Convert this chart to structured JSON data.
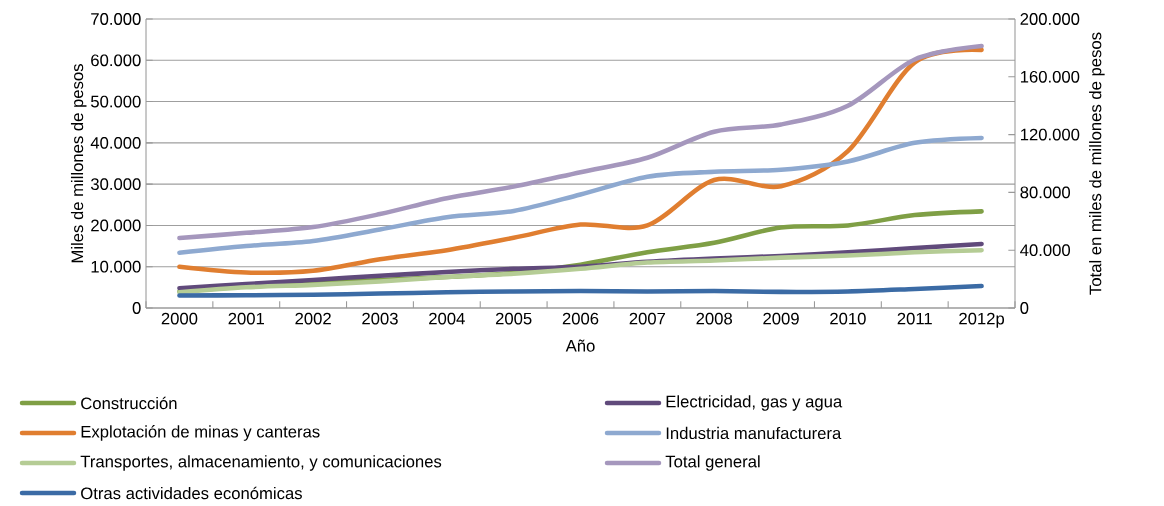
{
  "chart_data": {
    "type": "line",
    "xlabel": "Año",
    "ylabel": "Miles de millones de pesos",
    "y2label": "Total en miles de millones de pesos",
    "categories": [
      "2000",
      "2001",
      "2002",
      "2003",
      "2004",
      "2005",
      "2006",
      "2007",
      "2008",
      "2009",
      "2010",
      "2011",
      "2012p"
    ],
    "ylim": [
      0,
      70000
    ],
    "yticks": [
      {
        "value": 0,
        "label": "0"
      },
      {
        "value": 10000,
        "label": "10.000"
      },
      {
        "value": 20000,
        "label": "20.000"
      },
      {
        "value": 30000,
        "label": "30.000"
      },
      {
        "value": 40000,
        "label": "40.000"
      },
      {
        "value": 50000,
        "label": "50.000"
      },
      {
        "value": 60000,
        "label": "60.000"
      },
      {
        "value": 70000,
        "label": "70.000"
      }
    ],
    "y2lim": [
      0,
      200000
    ],
    "y2ticks": [
      {
        "value": 0,
        "label": "0"
      },
      {
        "value": 40000,
        "label": "40.000"
      },
      {
        "value": 80000,
        "label": "80.000"
      },
      {
        "value": 120000,
        "label": "120.000"
      },
      {
        "value": 160000,
        "label": "160.000"
      },
      {
        "value": 200000,
        "label": "200.000"
      }
    ],
    "grid": "y",
    "legend": "bottom",
    "line_style": "solid",
    "marker": "none",
    "series": [
      {
        "name": "Construcción",
        "color": "#7f9f45",
        "values": [
          4000,
          5200,
          6000,
          6800,
          7500,
          8500,
          10500,
          13500,
          15800,
          19500,
          20000,
          22500,
          23400
        ]
      },
      {
        "name": "Electricidad, gas y agua",
        "color": "#604a7b",
        "values": [
          4800,
          5800,
          6800,
          7800,
          8700,
          9500,
          10000,
          11200,
          12000,
          12600,
          13500,
          14500,
          15500
        ]
      },
      {
        "name": "Explotación de minas y canteras",
        "color": "#e07e30",
        "values": [
          10000,
          8600,
          9000,
          11800,
          14000,
          17000,
          20200,
          20000,
          31000,
          29500,
          38000,
          59500,
          62500
        ]
      },
      {
        "name": "Industria manufacturera",
        "color": "#8ea9d0",
        "values": [
          13400,
          15000,
          16200,
          19000,
          22000,
          23500,
          27500,
          31800,
          33000,
          33500,
          35500,
          40000,
          41200
        ]
      },
      {
        "name": "Transportes, almacenamiento, y comunicaciones",
        "color": "#b5cc95",
        "values": [
          3800,
          5000,
          5600,
          6400,
          7500,
          8300,
          9500,
          11000,
          11500,
          12200,
          12700,
          13500,
          14000
        ]
      },
      {
        "name": "Total general",
        "color": "#a597bd",
        "axis": "y2",
        "values": [
          48400,
          52000,
          56000,
          65000,
          76000,
          84000,
          94000,
          104000,
          122000,
          127000,
          140000,
          172000,
          181300
        ]
      },
      {
        "name": "Otras actividades económicas",
        "color": "#3b6ba5",
        "values": [
          3000,
          3100,
          3200,
          3500,
          3800,
          4000,
          4100,
          4000,
          4100,
          3900,
          4000,
          4600,
          5300
        ]
      }
    ]
  }
}
